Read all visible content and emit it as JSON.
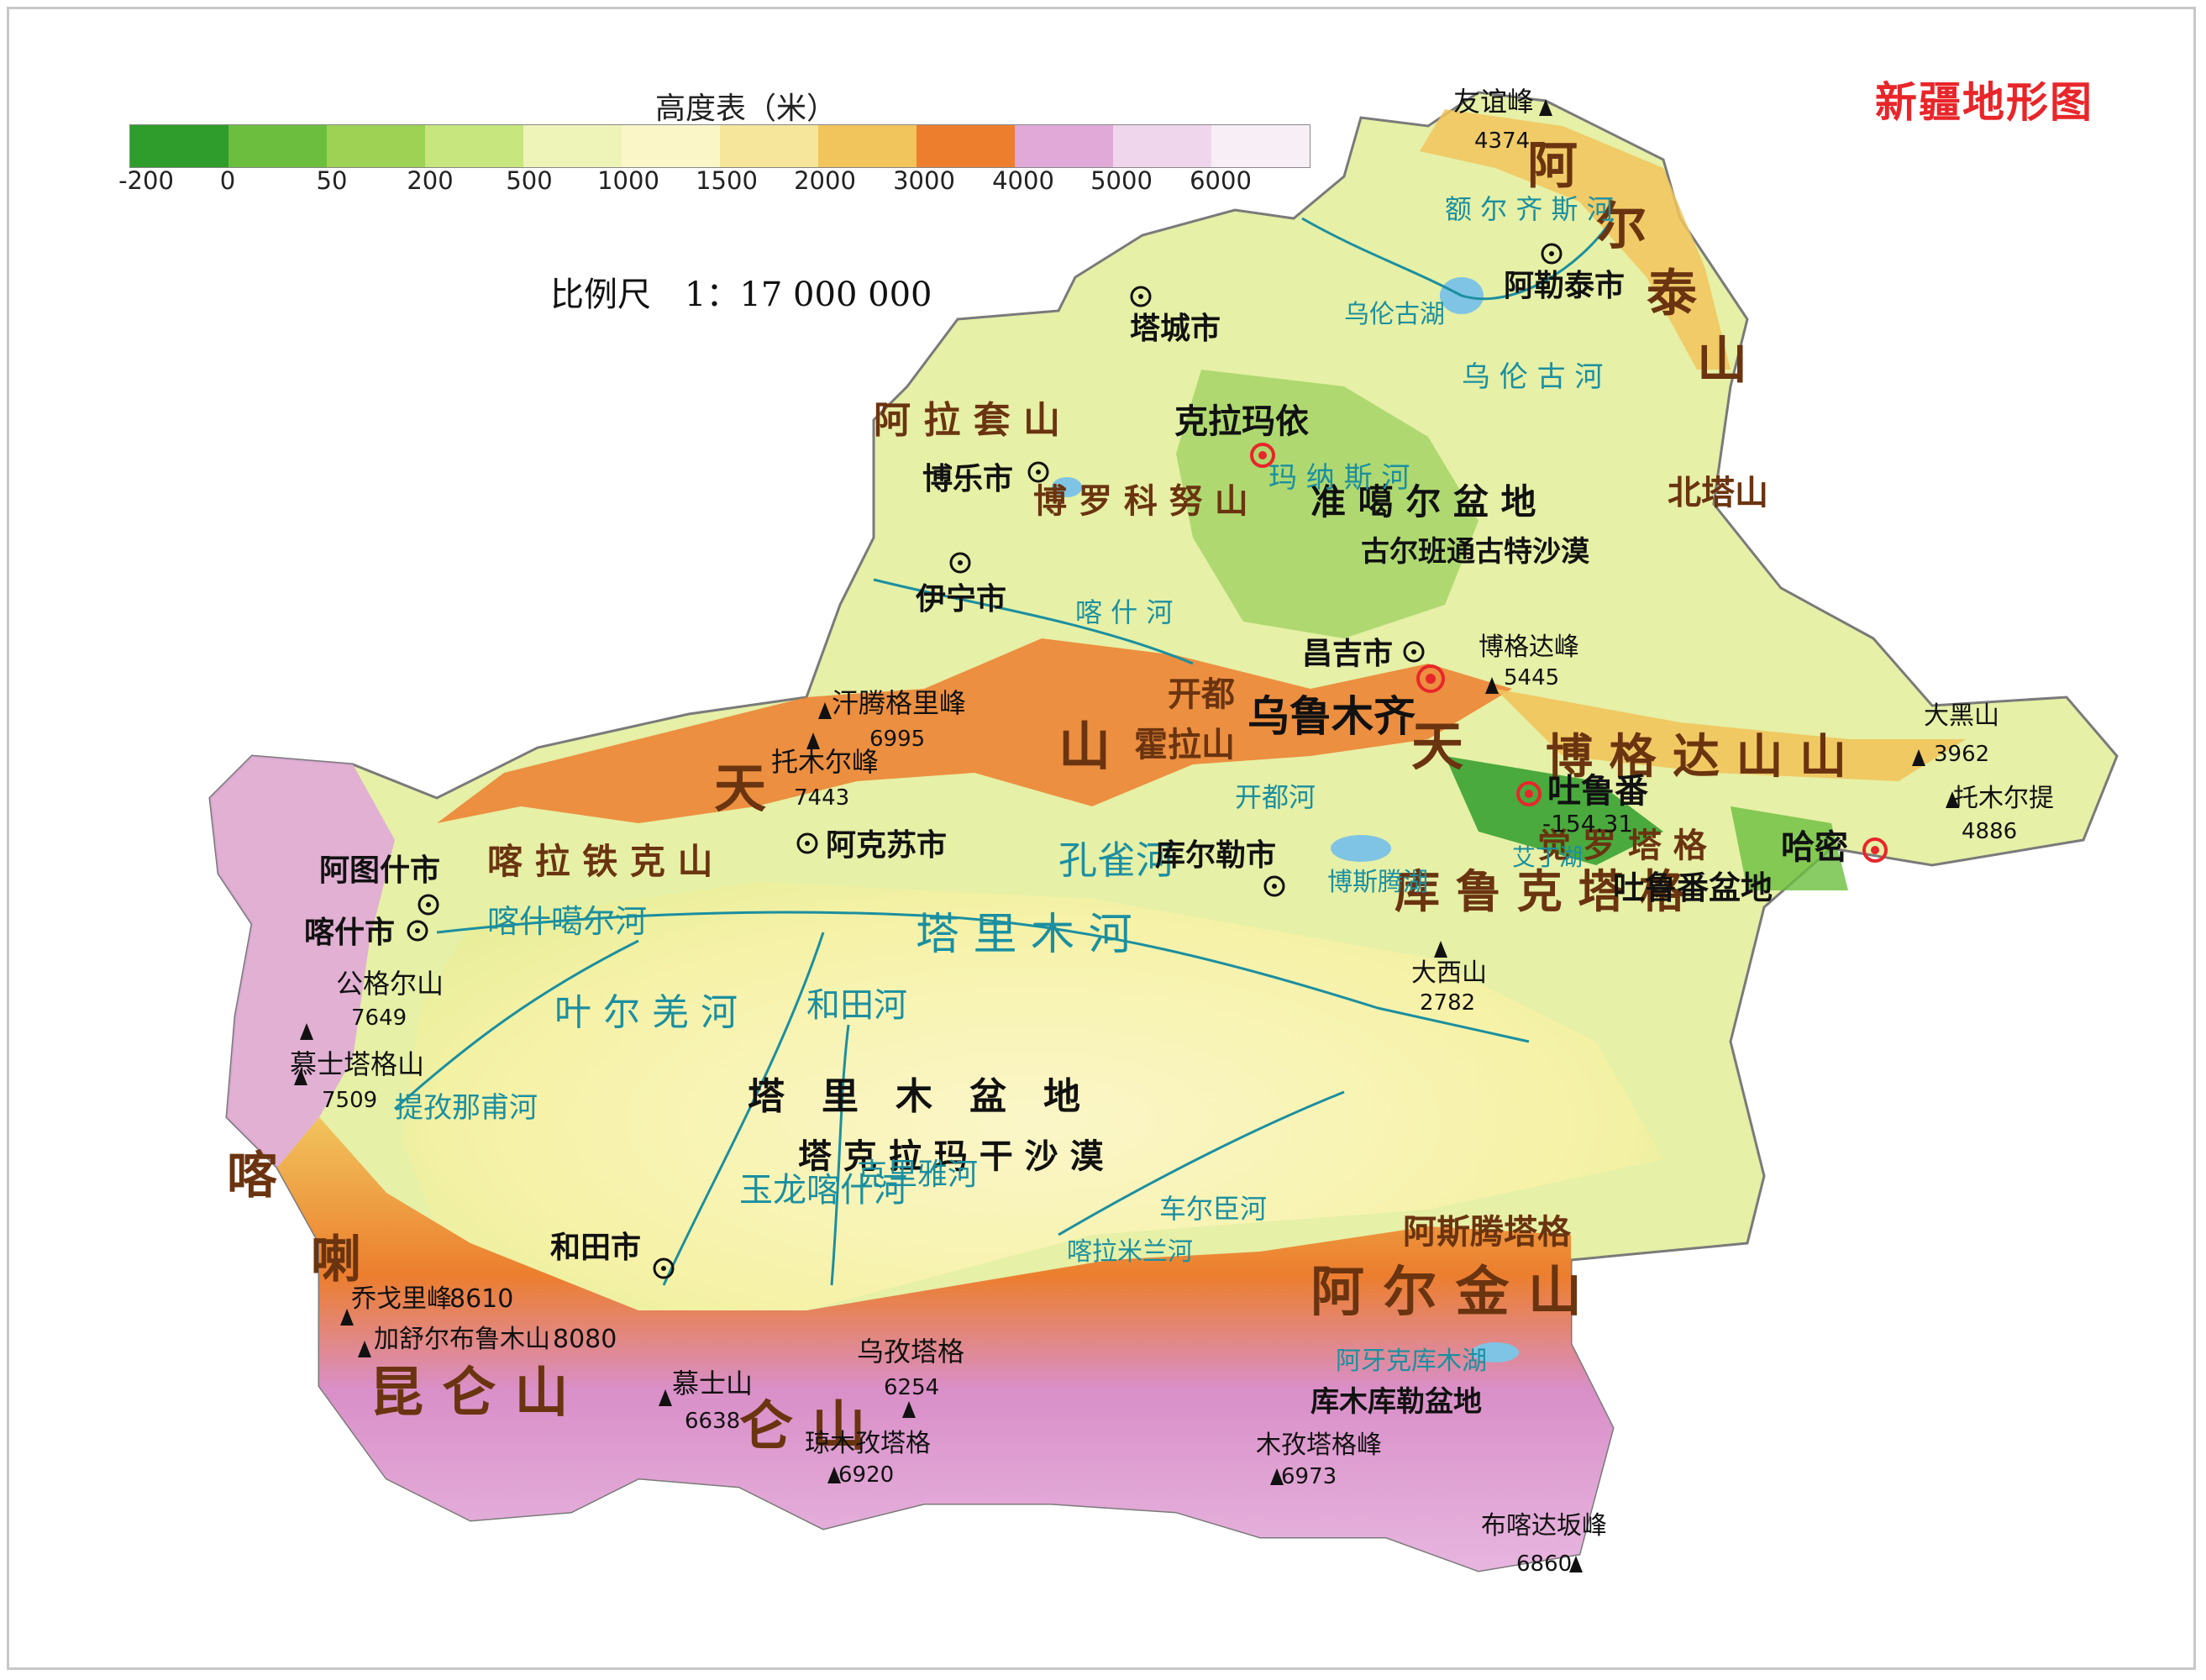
{
  "title": "新疆地形图",
  "legend": {
    "title": "高度表（米）",
    "colors": [
      "#2e9d2c",
      "#6cbf3e",
      "#9ed254",
      "#c7e67e",
      "#eef3b8",
      "#fbf6c8",
      "#f6e69c",
      "#f1c45c",
      "#ec7e2e",
      "#e0a9d8",
      "#efd6ec",
      "#f8eef6"
    ],
    "ticks": [
      "-200",
      "0",
      "50",
      "200",
      "500",
      "1000",
      "1500",
      "2000",
      "3000",
      "4000",
      "5000",
      "6000"
    ]
  },
  "scale": "比例尺　1：17 000 000",
  "cities": [
    {
      "label": "阿勒泰市"
    },
    {
      "label": "塔城市"
    },
    {
      "label": "博乐市"
    },
    {
      "label": "伊宁市"
    },
    {
      "label": "昌吉市"
    },
    {
      "label": "阿克苏市"
    },
    {
      "label": "库尔勒市"
    },
    {
      "label": "阿图什市"
    },
    {
      "label": "喀什市"
    },
    {
      "label": "和田市"
    }
  ],
  "major_cities": [
    {
      "label": "克拉玛依"
    },
    {
      "label": "乌鲁木齐"
    },
    {
      "label": "吐鲁番"
    },
    {
      "label": "哈密"
    }
  ],
  "peaks": [
    {
      "name": "友谊峰",
      "elev": "4374"
    },
    {
      "name": "博格达峰",
      "elev": "5445"
    },
    {
      "name": "大黑山",
      "elev": "3962"
    },
    {
      "name": "托木尔提",
      "elev": "4886"
    },
    {
      "name": "汗腾格里峰",
      "elev": "6995"
    },
    {
      "name": "托木尔峰",
      "elev": "7443"
    },
    {
      "name": "大西山",
      "elev": "2782"
    },
    {
      "name": "公格尔山",
      "elev": "7649"
    },
    {
      "name": "慕士塔格山",
      "elev": "7509"
    },
    {
      "name": "乔戈里峰",
      "elev": "8610"
    },
    {
      "name": "加舒尔布鲁木山",
      "elev": "8080"
    },
    {
      "name": "慕士山",
      "elev": "6638"
    },
    {
      "name": "乌孜塔格",
      "elev": "6254"
    },
    {
      "name": "琼木孜塔格",
      "elev": "6920"
    },
    {
      "name": "木孜塔格峰",
      "elev": "6973"
    },
    {
      "name": "布喀达坂峰",
      "elev": "6860"
    }
  ],
  "turpan_depression": "-154.31",
  "mountains": [
    {
      "label": "阿尔泰山"
    },
    {
      "label": "阿拉套山"
    },
    {
      "label": "博罗科努山"
    },
    {
      "label": "天山"
    },
    {
      "label": "博格达山"
    },
    {
      "label": "北塔山"
    },
    {
      "label": "喀拉铁克山"
    },
    {
      "label": "库鲁克塔格"
    },
    {
      "label": "觉罗塔格"
    },
    {
      "label": "阿尔金山"
    },
    {
      "label": "阿斯腾塔格"
    },
    {
      "label": "喀喇昆仑山"
    },
    {
      "label": "昆仑山"
    },
    {
      "label": "霍拉山"
    },
    {
      "label": "开都"
    }
  ],
  "regions": [
    {
      "label": "准噶尔盆地"
    },
    {
      "label": "古尔班通古特沙漠"
    },
    {
      "label": "塔里木盆地"
    },
    {
      "label": "塔克拉玛干沙漠"
    },
    {
      "label": "吐鲁番盆地"
    },
    {
      "label": "库木库勒盆地"
    }
  ],
  "rivers": [
    {
      "label": "额尔齐斯河"
    },
    {
      "label": "乌伦古河"
    },
    {
      "label": "乌伦古湖"
    },
    {
      "label": "玛纳斯河"
    },
    {
      "label": "喀什河"
    },
    {
      "label": "塔里木河"
    },
    {
      "label": "孔雀河"
    },
    {
      "label": "叶尔羌河"
    },
    {
      "label": "喀什噶尔河"
    },
    {
      "label": "和田河"
    },
    {
      "label": "克里雅河"
    },
    {
      "label": "玉龙喀什河"
    },
    {
      "label": "喀拉米兰河"
    },
    {
      "label": "车尔臣河"
    },
    {
      "label": "提孜那甫河"
    },
    {
      "label": "博斯腾湖"
    },
    {
      "label": "艾丁湖"
    },
    {
      "label": "阿牙克库木湖"
    },
    {
      "label": "开都河"
    }
  ]
}
